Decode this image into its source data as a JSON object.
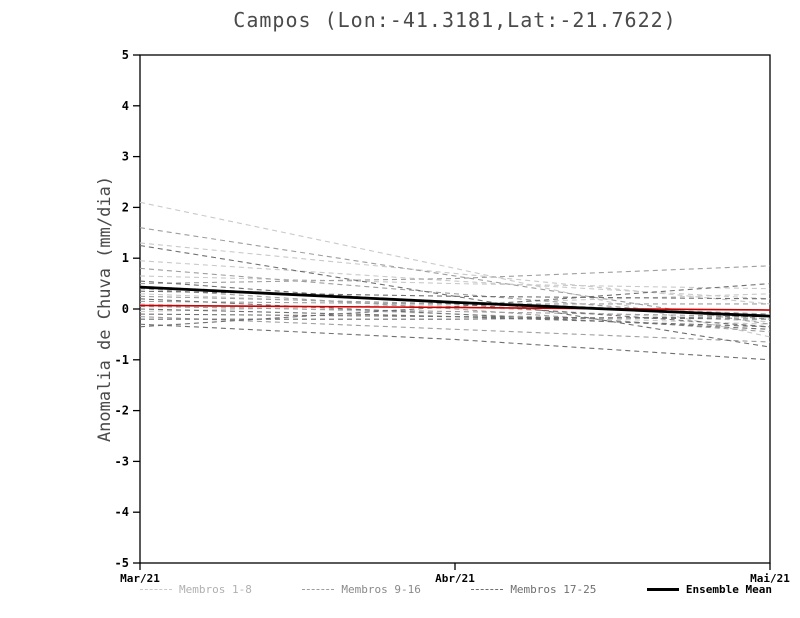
{
  "chart_data": {
    "type": "line",
    "title": "Campos (Lon:-41.3181,Lat:-21.7622)",
    "ylabel": "Anomalia de Chuva (mm/dia)",
    "xlabel": "",
    "ylim": [
      -5,
      5
    ],
    "yticks": [
      5,
      4,
      3,
      2,
      1,
      0,
      -1,
      -2,
      -3,
      -4,
      -5
    ],
    "x": [
      "Mar/21",
      "Abr/21",
      "Mai/21"
    ],
    "grid": false,
    "legend_position": "bottom",
    "groups": [
      {
        "name": "Membros 1-8",
        "color": "#c9c9c9",
        "style": "dashed"
      },
      {
        "name": "Membros 9-16",
        "color": "#9e9e9e",
        "style": "dashed"
      },
      {
        "name": "Membros 17-25",
        "color": "#6f6f6f",
        "style": "dashed"
      }
    ],
    "members": [
      {
        "group": 0,
        "values": [
          2.1,
          0.8,
          -0.55
        ]
      },
      {
        "group": 0,
        "values": [
          1.3,
          0.7,
          0.1
        ]
      },
      {
        "group": 0,
        "values": [
          0.95,
          0.55,
          0.2
        ]
      },
      {
        "group": 0,
        "values": [
          0.65,
          0.5,
          0.4
        ]
      },
      {
        "group": 0,
        "values": [
          0.45,
          0.15,
          -0.1
        ]
      },
      {
        "group": 0,
        "values": [
          0.3,
          0.05,
          -0.25
        ]
      },
      {
        "group": 0,
        "values": [
          0.1,
          -0.1,
          -0.3
        ]
      },
      {
        "group": 0,
        "values": [
          -0.05,
          0.1,
          0.3
        ]
      },
      {
        "group": 1,
        "values": [
          1.6,
          0.65,
          -0.3
        ]
      },
      {
        "group": 1,
        "values": [
          0.8,
          0.3,
          -0.2
        ]
      },
      {
        "group": 1,
        "values": [
          0.5,
          0.6,
          0.85
        ]
      },
      {
        "group": 1,
        "values": [
          0.4,
          0.0,
          -0.45
        ]
      },
      {
        "group": 1,
        "values": [
          0.25,
          0.1,
          -0.1
        ]
      },
      {
        "group": 1,
        "values": [
          0.15,
          0.1,
          0.1
        ]
      },
      {
        "group": 1,
        "values": [
          0.05,
          -0.05,
          -0.15
        ]
      },
      {
        "group": 1,
        "values": [
          -0.15,
          -0.4,
          -0.65
        ]
      },
      {
        "group": 2,
        "values": [
          1.25,
          0.25,
          -0.75
        ]
      },
      {
        "group": 2,
        "values": [
          0.55,
          0.1,
          -0.35
        ]
      },
      {
        "group": 2,
        "values": [
          0.35,
          0.25,
          0.2
        ]
      },
      {
        "group": 2,
        "values": [
          0.2,
          -0.1,
          -0.4
        ]
      },
      {
        "group": 2,
        "values": [
          0.0,
          -0.15,
          -0.35
        ]
      },
      {
        "group": 2,
        "values": [
          -0.1,
          -0.15,
          -0.2
        ]
      },
      {
        "group": 2,
        "values": [
          -0.2,
          -0.2,
          -0.15
        ]
      },
      {
        "group": 2,
        "values": [
          -0.3,
          -0.6,
          -1.0
        ]
      },
      {
        "group": 2,
        "values": [
          -0.35,
          0.05,
          0.5
        ]
      }
    ],
    "ensemble_mean": {
      "name": "Ensemble Mean",
      "color": "#000000",
      "values": [
        0.43,
        0.13,
        -0.14
      ]
    },
    "reference_line": {
      "name": "zero-reference",
      "color": "#cc0000",
      "values": [
        0.07,
        0.03,
        -0.02
      ]
    }
  },
  "legend": {
    "items": [
      {
        "label": "Membros 1-8",
        "color": "#c9c9c9",
        "text_color": "#b0b0b0",
        "style": "dashed"
      },
      {
        "label": "Membros 9-16",
        "color": "#9e9e9e",
        "text_color": "#8a8a8a",
        "style": "dashed"
      },
      {
        "label": "Membros 17-25",
        "color": "#6f6f6f",
        "text_color": "#6f6f6f",
        "style": "dashed"
      },
      {
        "label": "Ensemble Mean",
        "color": "#000000",
        "text_color": "#000000",
        "style": "solid"
      }
    ]
  }
}
